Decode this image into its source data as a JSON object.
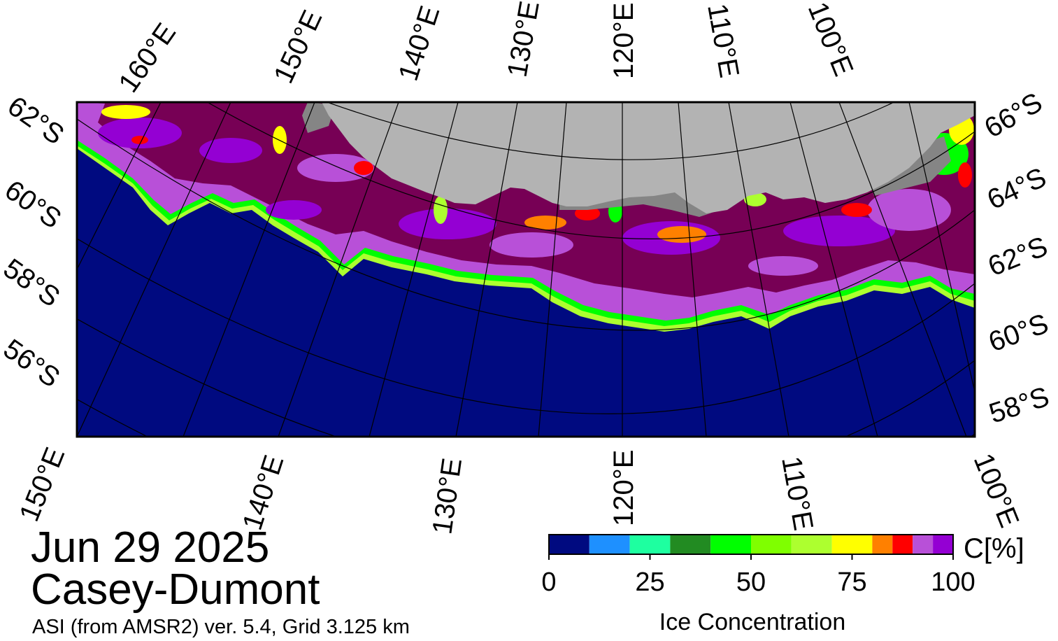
{
  "figure": {
    "date": "Jun 29 2025",
    "region": "Casey-Dumont",
    "source_line": "ASI (from AMSR2) ver. 5.4,  Grid 3.125 km"
  },
  "colors": {
    "ocean": "#000a80",
    "land": "#b3b3b3",
    "ice_shelf": "#858585",
    "high_ice": "#770055",
    "mid_purple": "#9400d3",
    "light_purple": "#b850d8"
  },
  "axes": {
    "top_longitudes": [
      "160°E",
      "150°E",
      "140°E",
      "130°E",
      "120°E",
      "110°E",
      "100°E"
    ],
    "bottom_longitudes": [
      "150°E",
      "140°E",
      "130°E",
      "120°E",
      "110°E",
      "100°E"
    ],
    "left_latitudes": [
      "62°S",
      "60°S",
      "58°S",
      "56°S"
    ],
    "right_latitudes": [
      "66°S",
      "64°S",
      "62°S",
      "60°S",
      "58°S"
    ]
  },
  "colorbar": {
    "title": "Ice Concentration",
    "unit": "C[%]",
    "ticks": [
      "0",
      "25",
      "50",
      "75",
      "100"
    ],
    "range": [
      0,
      100
    ],
    "bins": [
      {
        "from": 0,
        "to": 10,
        "color": "#000a80"
      },
      {
        "from": 10,
        "to": 20,
        "color": "#1e90ff"
      },
      {
        "from": 20,
        "to": 30,
        "color": "#1effa0"
      },
      {
        "from": 30,
        "to": 40,
        "color": "#228b22"
      },
      {
        "from": 40,
        "to": 50,
        "color": "#00ff00"
      },
      {
        "from": 50,
        "to": 60,
        "color": "#7fff00"
      },
      {
        "from": 60,
        "to": 70,
        "color": "#adff2f"
      },
      {
        "from": 70,
        "to": 80,
        "color": "#ffff00"
      },
      {
        "from": 80,
        "to": 85,
        "color": "#ff8000"
      },
      {
        "from": 85,
        "to": 90,
        "color": "#ff0000"
      },
      {
        "from": 90,
        "to": 95,
        "color": "#b850d8"
      },
      {
        "from": 95,
        "to": 100,
        "color": "#9400d3"
      }
    ]
  }
}
